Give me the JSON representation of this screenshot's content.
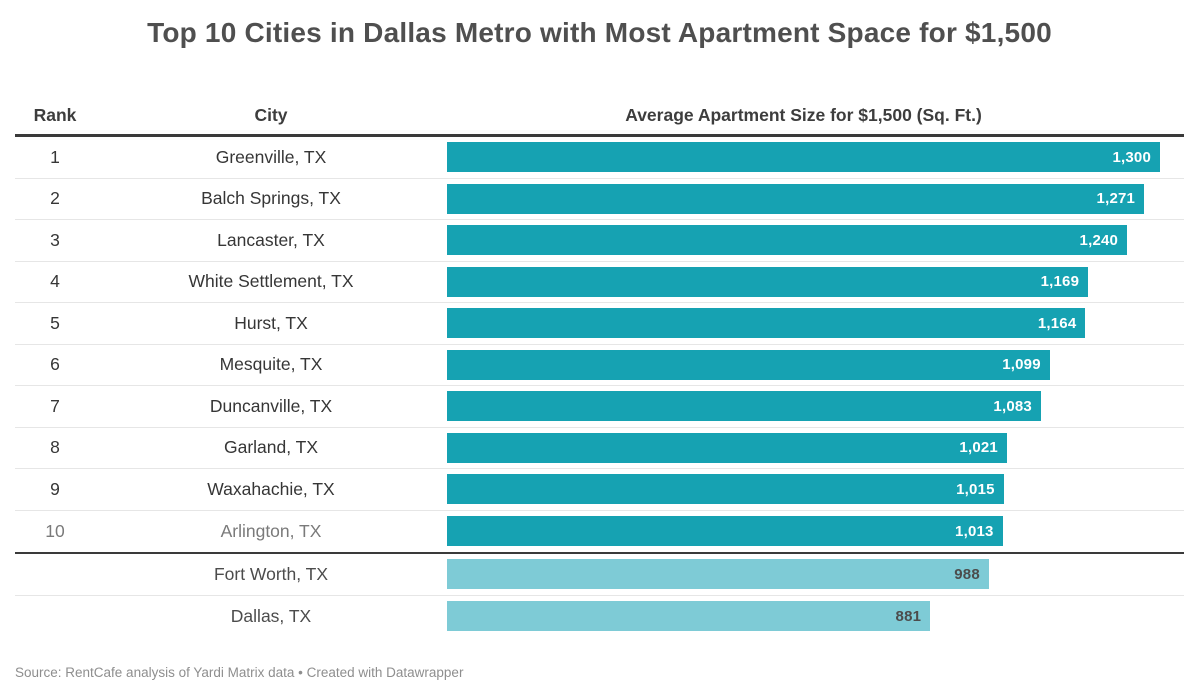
{
  "title": "Top 10 Cities in Dallas Metro with Most Apartment Space for $1,500",
  "table": {
    "columns": {
      "rank": "Rank",
      "city": "City",
      "value": "Average Apartment Size for $1,500 (Sq. Ft.)"
    },
    "rows": [
      {
        "rank": "1",
        "city": "Greenville, TX",
        "value": 1300,
        "label": "1,300",
        "muted": false,
        "light": false
      },
      {
        "rank": "2",
        "city": "Balch Springs, TX",
        "value": 1271,
        "label": "1,271",
        "muted": false,
        "light": false
      },
      {
        "rank": "3",
        "city": "Lancaster, TX",
        "value": 1240,
        "label": "1,240",
        "muted": false,
        "light": false
      },
      {
        "rank": "4",
        "city": "White Settlement, TX",
        "value": 1169,
        "label": "1,169",
        "muted": false,
        "light": false
      },
      {
        "rank": "5",
        "city": "Hurst, TX",
        "value": 1164,
        "label": "1,164",
        "muted": false,
        "light": false
      },
      {
        "rank": "6",
        "city": "Mesquite, TX",
        "value": 1099,
        "label": "1,099",
        "muted": false,
        "light": false
      },
      {
        "rank": "7",
        "city": "Duncanville, TX",
        "value": 1083,
        "label": "1,083",
        "muted": false,
        "light": false
      },
      {
        "rank": "8",
        "city": "Garland, TX",
        "value": 1021,
        "label": "1,021",
        "muted": false,
        "light": false
      },
      {
        "rank": "9",
        "city": "Waxahachie, TX",
        "value": 1015,
        "label": "1,015",
        "muted": false,
        "light": false
      },
      {
        "rank": "10",
        "city": "Arlington, TX",
        "value": 1013,
        "label": "1,013",
        "muted": true,
        "light": false
      },
      {
        "rank": "",
        "city": "Fort Worth, TX",
        "value": 988,
        "label": "988",
        "muted": false,
        "light": true
      },
      {
        "rank": "",
        "city": "Dallas, TX",
        "value": 881,
        "label": "881",
        "muted": false,
        "light": true
      }
    ]
  },
  "chart_data": {
    "type": "bar",
    "orientation": "horizontal",
    "title": "Top 10 Cities in Dallas Metro with Most Apartment Space for $1,500",
    "xlabel": "Average Apartment Size for $1,500 (Sq. Ft.)",
    "ylabel": "City",
    "categories": [
      "Greenville, TX",
      "Balch Springs, TX",
      "Lancaster, TX",
      "White Settlement, TX",
      "Hurst, TX",
      "Mesquite, TX",
      "Duncanville, TX",
      "Garland, TX",
      "Waxahachie, TX",
      "Arlington, TX",
      "Fort Worth, TX",
      "Dallas, TX"
    ],
    "values": [
      1300,
      1271,
      1240,
      1169,
      1164,
      1099,
      1083,
      1021,
      1015,
      1013,
      988,
      881
    ],
    "value_labels": [
      "1,300",
      "1,271",
      "1,240",
      "1,169",
      "1,164",
      "1,099",
      "1,083",
      "1,021",
      "1,015",
      "1,013",
      "988",
      "881"
    ],
    "ranks": [
      "1",
      "2",
      "3",
      "4",
      "5",
      "6",
      "7",
      "8",
      "9",
      "10",
      "",
      ""
    ],
    "xlim": [
      0,
      1300
    ],
    "grid": false,
    "legend": "none",
    "data_labels": "inside-end",
    "series_note": "Top 10 rows in dark teal; Fort Worth and Dallas comparison rows in light teal"
  },
  "colors": {
    "bar": "#16a2b2",
    "bar_light": "#7ecbd6",
    "title_text": "#4f4f4f",
    "header_text": "#3d3d3d",
    "row_text": "#363636",
    "muted_text": "#7a7a7a",
    "rule": "#3a3a3a",
    "separator": "#e6e6e6",
    "footer_text": "#8e8e8e"
  },
  "footer": {
    "source": "Source: RentCafe analysis of Yardi Matrix data • Created with Datawrapper"
  }
}
